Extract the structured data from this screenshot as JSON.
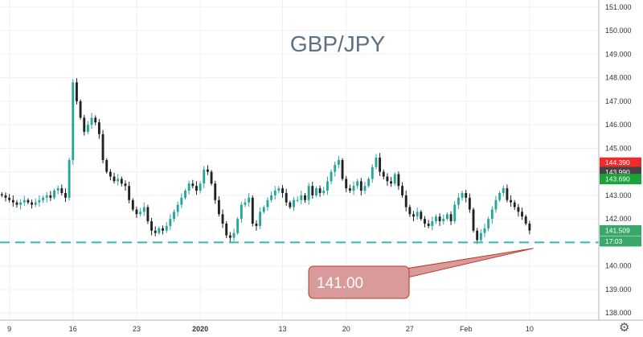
{
  "chart_data": {
    "type": "candlestick",
    "title": "GBP/JPY",
    "ylim": [
      137.7,
      151.3
    ],
    "y_ticks": [
      "151.000",
      "150.000",
      "149.000",
      "148.000",
      "147.000",
      "146.000",
      "145.000",
      "144.000",
      "143.000",
      "142.000",
      "141.000",
      "140.000",
      "139.000",
      "138.000"
    ],
    "x_ticks": [
      {
        "label": "9",
        "index": 2
      },
      {
        "label": "16",
        "index": 19
      },
      {
        "label": "23",
        "index": 36
      },
      {
        "label": "2020",
        "index": 53,
        "bold": true
      },
      {
        "label": "13",
        "index": 75
      },
      {
        "label": "20",
        "index": 92
      },
      {
        "label": "27",
        "index": 109
      },
      {
        "label": "Feb",
        "index": 124
      },
      {
        "label": "10",
        "index": 141
      }
    ],
    "n_slots": 160,
    "closes": [
      143.0,
      142.9,
      142.8,
      142.7,
      142.6,
      142.7,
      142.8,
      142.7,
      142.6,
      142.7,
      142.8,
      142.9,
      143.0,
      142.9,
      143.2,
      143.3,
      143.1,
      142.9,
      144.5,
      147.8,
      147.0,
      146.3,
      145.7,
      146.0,
      146.3,
      146.1,
      145.6,
      144.5,
      144.0,
      143.8,
      143.6,
      143.7,
      143.5,
      143.4,
      142.8,
      142.4,
      142.2,
      142.3,
      142.5,
      141.9,
      141.5,
      141.4,
      141.6,
      141.5,
      141.7,
      142.0,
      142.3,
      142.6,
      142.9,
      143.2,
      143.5,
      143.4,
      143.2,
      143.5,
      144.1,
      144.0,
      143.5,
      142.8,
      142.2,
      141.8,
      141.3,
      141.2,
      141.4,
      142.0,
      142.6,
      142.7,
      142.9,
      141.8,
      141.7,
      142.3,
      142.5,
      142.8,
      143.0,
      143.2,
      143.3,
      143.1,
      142.7,
      142.5,
      142.8,
      142.8,
      143.0,
      142.8,
      143.4,
      143.0,
      143.3,
      143.1,
      143.2,
      143.6,
      144.0,
      144.3,
      144.5,
      143.7,
      143.3,
      143.2,
      143.4,
      143.6,
      143.2,
      143.4,
      143.7,
      144.2,
      144.6,
      144.0,
      143.8,
      143.6,
      143.5,
      143.9,
      143.4,
      143.0,
      142.5,
      142.2,
      142.1,
      142.3,
      142.0,
      141.8,
      141.7,
      141.9,
      142.1,
      141.9,
      142.0,
      142.2,
      141.9,
      142.6,
      142.9,
      143.1,
      142.9,
      142.4,
      141.5,
      141.1,
      141.4,
      141.6,
      142.0,
      142.4,
      142.8,
      143.1,
      143.3,
      142.8,
      142.7,
      142.5,
      142.3,
      142.1,
      141.8,
      141.51
    ],
    "last_price": 141.509,
    "price_tags": [
      {
        "text": "144.390",
        "value": 144.39,
        "color": "#ef2b2b"
      },
      {
        "text": "143.990",
        "value": 143.99,
        "color": "#444444"
      },
      {
        "text": "143.690",
        "value": 143.69,
        "color": "#1ba33a"
      },
      {
        "text": "141.509",
        "value": 141.509,
        "color": "#3aa86a"
      },
      {
        "text": "17:03",
        "value": 141.05,
        "color": "#3aa86a"
      }
    ],
    "hline": {
      "value": 141.0,
      "color": "#39b8b0"
    },
    "annotation": {
      "text": "141.00",
      "target_index": 142,
      "target_value": 140.75
    }
  },
  "colors": {
    "up": "#26a69a",
    "down": "#222222",
    "grid": "#eef0f3",
    "callout_fill": "#d99a9a",
    "callout_border": "#c0392b"
  },
  "settings_icon": "gear-icon"
}
